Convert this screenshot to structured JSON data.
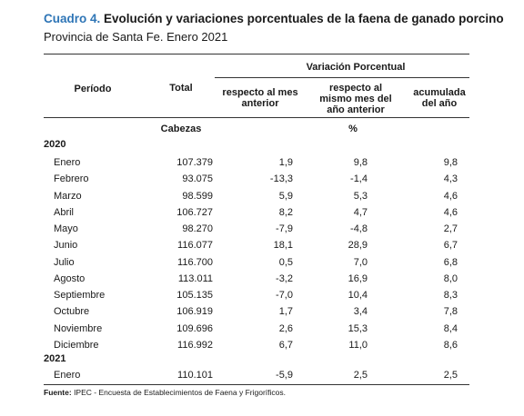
{
  "header": {
    "title_tag": "Cuadro 4.",
    "title": "Evolución y variaciones porcentuales de la faena de ganado porcino",
    "subtitle": "Provincia de Santa Fe. Enero 2021"
  },
  "table": {
    "group_header": "Variación Porcentual",
    "col_period": "Período",
    "col_total": "Total",
    "col_prev_month": "respecto al mes anterior",
    "col_same_month": "respecto al mismo mes del año anterior",
    "col_accum": "acumulada del año",
    "unit_total": "Cabezas",
    "unit_pct": "%",
    "years": [
      {
        "year": "2020",
        "rows": [
          {
            "month": "Enero",
            "total": "107.379",
            "prev": "1,9",
            "same": "9,8",
            "accum": "9,8"
          },
          {
            "month": "Febrero",
            "total": "93.075",
            "prev": "-13,3",
            "same": "-1,4",
            "accum": "4,3"
          },
          {
            "month": "Marzo",
            "total": "98.599",
            "prev": "5,9",
            "same": "5,3",
            "accum": "4,6"
          },
          {
            "month": "Abril",
            "total": "106.727",
            "prev": "8,2",
            "same": "4,7",
            "accum": "4,6"
          },
          {
            "month": "Mayo",
            "total": "98.270",
            "prev": "-7,9",
            "same": "-4,8",
            "accum": "2,7"
          },
          {
            "month": "Junio",
            "total": "116.077",
            "prev": "18,1",
            "same": "28,9",
            "accum": "6,7"
          },
          {
            "month": "Julio",
            "total": "116.700",
            "prev": "0,5",
            "same": "7,0",
            "accum": "6,8"
          },
          {
            "month": "Agosto",
            "total": "113.011",
            "prev": "-3,2",
            "same": "16,9",
            "accum": "8,0"
          },
          {
            "month": "Septiembre",
            "total": "105.135",
            "prev": "-7,0",
            "same": "10,4",
            "accum": "8,3"
          },
          {
            "month": "Octubre",
            "total": "106.919",
            "prev": "1,7",
            "same": "3,4",
            "accum": "7,8"
          },
          {
            "month": "Noviembre",
            "total": "109.696",
            "prev": "2,6",
            "same": "15,3",
            "accum": "8,4"
          },
          {
            "month": "Diciembre",
            "total": "116.992",
            "prev": "6,7",
            "same": "11,0",
            "accum": "8,6"
          }
        ]
      },
      {
        "year": "2021",
        "rows": [
          {
            "month": "Enero",
            "total": "110.101",
            "prev": "-5,9",
            "same": "2,5",
            "accum": "2,5"
          }
        ]
      }
    ]
  },
  "footer": {
    "source_label": "Fuente:",
    "source_text": " IPEC - Encuesta de Establecimientos de Faena y Frigoríficos."
  }
}
